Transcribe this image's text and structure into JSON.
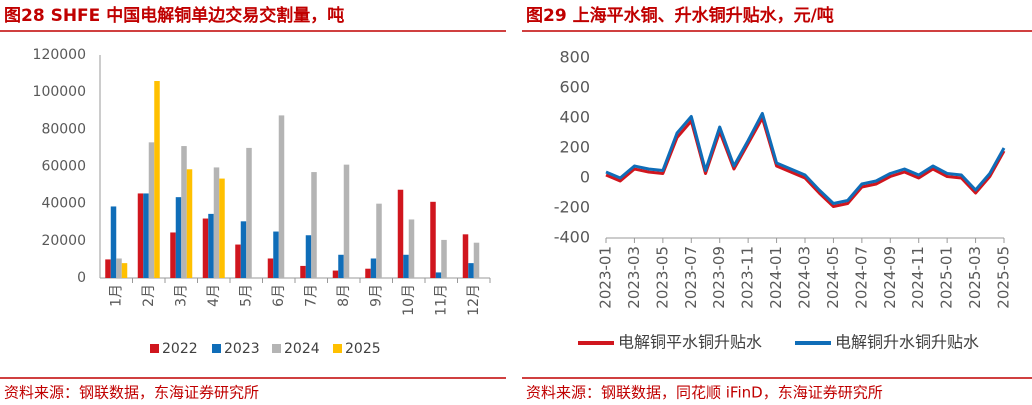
{
  "chart_data": [
    {
      "type": "bar",
      "title": "图28  SHFE 中国电解铜单边交易交割量，吨",
      "source": "资料来源：钢联数据，东海证券研究所",
      "categories": [
        "1月",
        "2月",
        "3月",
        "4月",
        "5月",
        "6月",
        "7月",
        "8月",
        "9月",
        "10月",
        "11月",
        "12月"
      ],
      "series": [
        {
          "name": "2022",
          "color": "#d0161e",
          "values": [
            10000,
            45500,
            24500,
            32000,
            18000,
            10500,
            6500,
            4000,
            5000,
            47500,
            41000,
            23500
          ]
        },
        {
          "name": "2023",
          "color": "#0f6db8",
          "values": [
            38500,
            45500,
            43500,
            34500,
            30500,
            25000,
            23000,
            12500,
            10500,
            12500,
            3000,
            8000
          ]
        },
        {
          "name": "2024",
          "color": "#b4b4b4",
          "values": [
            10500,
            73000,
            71000,
            59500,
            70000,
            87500,
            57000,
            61000,
            40000,
            31500,
            20500,
            19000
          ]
        },
        {
          "name": "2025",
          "color": "#ffc000",
          "values": [
            8000,
            106000,
            58500,
            53500,
            null,
            null,
            null,
            null,
            null,
            null,
            null,
            null
          ]
        }
      ],
      "ylim": [
        0,
        120000
      ],
      "yticks": [
        0,
        20000,
        40000,
        60000,
        80000,
        100000,
        120000
      ],
      "legend": "bottom"
    },
    {
      "type": "line",
      "title": "图29  上海平水铜、升水铜升贴水，元/吨",
      "source": "资料来源：钢联数据，同花顺 iFinD，东海证券研究所",
      "x": [
        "2023-01",
        "2023-02",
        "2023-03",
        "2023-04",
        "2023-05",
        "2023-06",
        "2023-07",
        "2023-08",
        "2023-09",
        "2023-10",
        "2023-11",
        "2023-12",
        "2024-01",
        "2024-02",
        "2024-03",
        "2024-04",
        "2024-05",
        "2024-06",
        "2024-07",
        "2024-08",
        "2024-09",
        "2024-10",
        "2024-11",
        "2024-12",
        "2025-01",
        "2025-02",
        "2025-03",
        "2025-04",
        "2025-05"
      ],
      "xticks": [
        "2023-01",
        "2023-03",
        "2023-05",
        "2023-07",
        "2023-09",
        "2023-11",
        "2024-01",
        "2024-03",
        "2024-05",
        "2024-07",
        "2024-09",
        "2024-11",
        "2025-01",
        "2025-03",
        "2025-05"
      ],
      "series": [
        {
          "name": "电解铜平水铜升贴水",
          "color": "#d0161e",
          "values": [
            20,
            -20,
            60,
            40,
            30,
            270,
            380,
            30,
            310,
            60,
            230,
            400,
            80,
            40,
            0,
            -100,
            -190,
            -170,
            -60,
            -40,
            10,
            40,
            0,
            60,
            10,
            0,
            -100,
            10,
            180
          ]
        },
        {
          "name": "电解铜升水铜升贴水",
          "color": "#0f6db8",
          "values": [
            40,
            0,
            80,
            60,
            50,
            300,
            410,
            50,
            340,
            80,
            250,
            430,
            100,
            60,
            20,
            -80,
            -170,
            -150,
            -40,
            -20,
            30,
            60,
            20,
            80,
            30,
            20,
            -80,
            30,
            200
          ]
        }
      ],
      "ylim": [
        -400,
        800
      ],
      "yticks": [
        -400,
        -200,
        0,
        200,
        400,
        600,
        800
      ],
      "legend": "bottom"
    }
  ]
}
